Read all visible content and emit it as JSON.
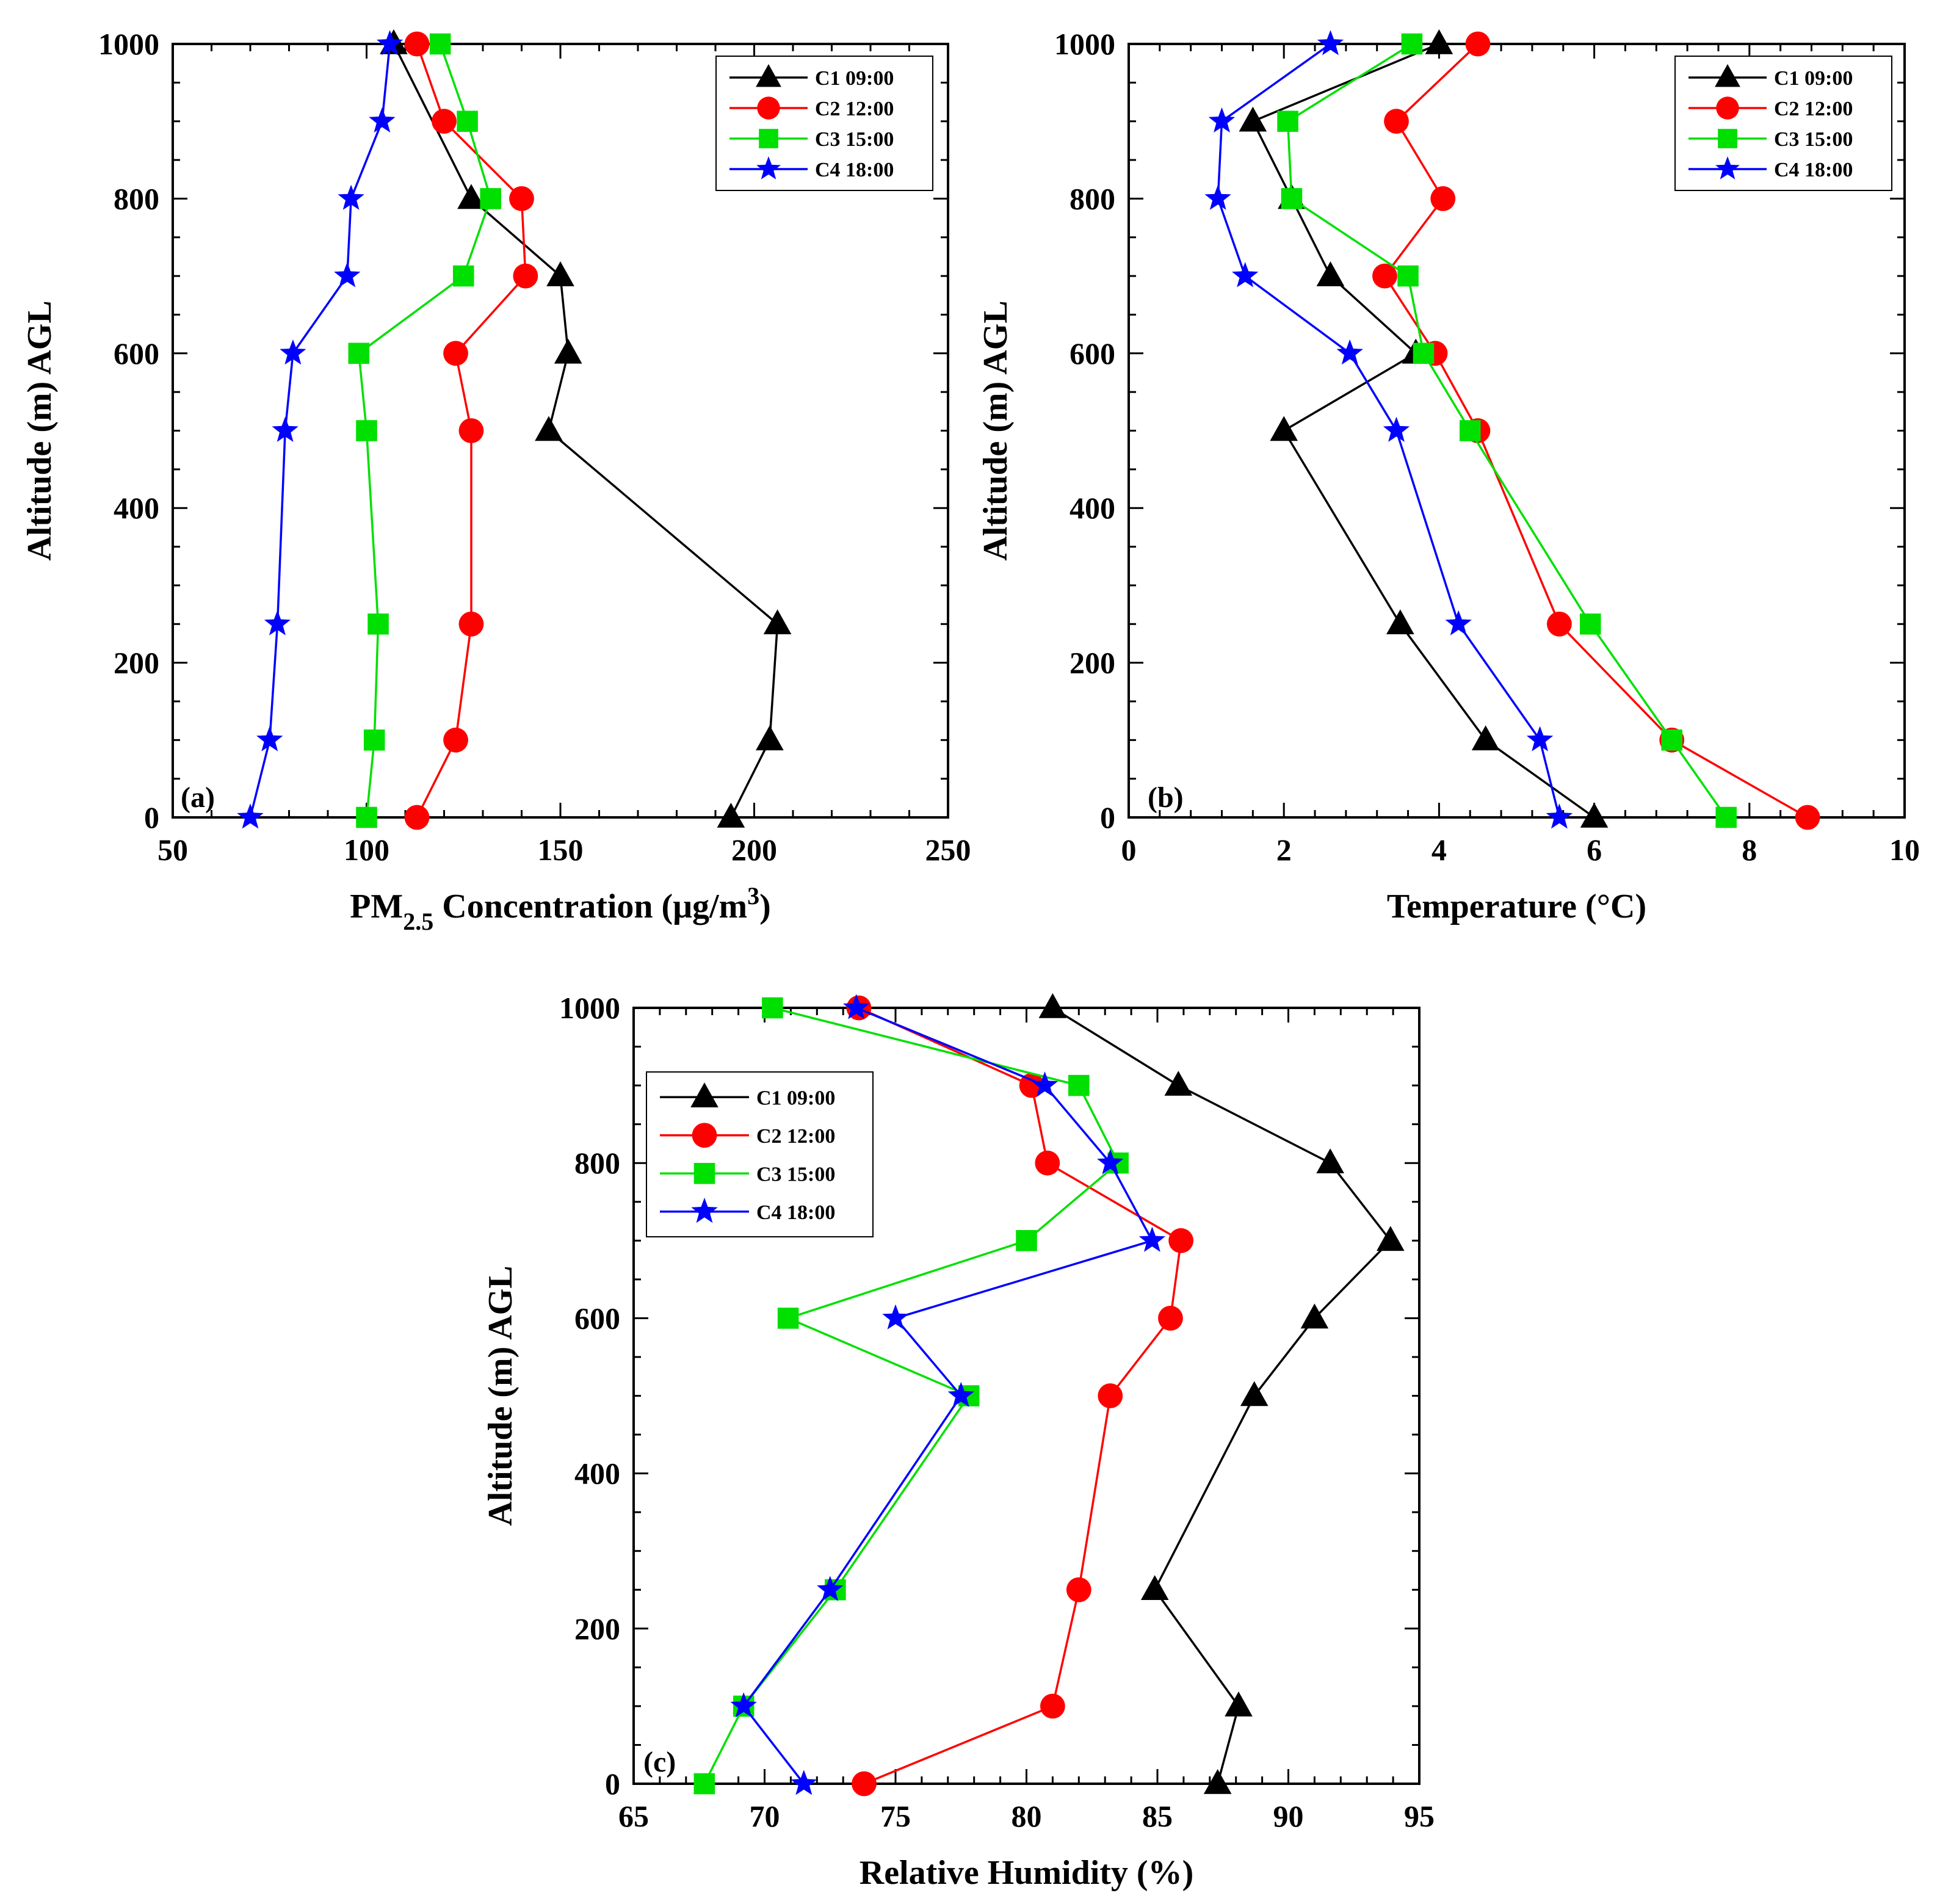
{
  "figure": {
    "series_meta": [
      {
        "name": "C1 09:00",
        "color": "#000000",
        "marker": "triangle"
      },
      {
        "name": "C2 12:00",
        "color": "#ff0000",
        "marker": "circle"
      },
      {
        "name": "C3 15:00",
        "color": "#00e000",
        "marker": "square"
      },
      {
        "name": "C4 18:00",
        "color": "#0000ff",
        "marker": "star"
      }
    ]
  },
  "chart_data": [
    {
      "type": "line",
      "panel_label": "(a)",
      "title": "",
      "xlabel_parts": [
        "PM",
        "2.5",
        " Concentration (μg/m",
        "3",
        ")"
      ],
      "xlabel": "PM2.5 Concentration (μg/m3)",
      "ylabel": "Altitude (m) AGL",
      "xlim": [
        50,
        250
      ],
      "ylim": [
        0,
        1000
      ],
      "xticks": [
        50,
        100,
        150,
        200,
        250
      ],
      "yticks": [
        0,
        200,
        400,
        600,
        800,
        1000
      ],
      "legend_position": "top-right",
      "series": [
        {
          "name": "C1 09:00",
          "points": [
            [
              194,
              0
            ],
            [
              204,
              100
            ],
            [
              206,
              250
            ],
            [
              147,
              500
            ],
            [
              152,
              600
            ],
            [
              150,
              700
            ],
            [
              127,
              800
            ],
            [
              107,
              1000
            ]
          ]
        },
        {
          "name": "C2 12:00",
          "points": [
            [
              113,
              0
            ],
            [
              123,
              100
            ],
            [
              127,
              250
            ],
            [
              127,
              500
            ],
            [
              123,
              600
            ],
            [
              141,
              700
            ],
            [
              140,
              800
            ],
            [
              120,
              900
            ],
            [
              113,
              1000
            ]
          ]
        },
        {
          "name": "C3 15:00",
          "points": [
            [
              100,
              0
            ],
            [
              102,
              100
            ],
            [
              103,
              250
            ],
            [
              100,
              500
            ],
            [
              98,
              600
            ],
            [
              125,
              700
            ],
            [
              132,
              800
            ],
            [
              126,
              900
            ],
            [
              119,
              1000
            ]
          ]
        },
        {
          "name": "C4 18:00",
          "points": [
            [
              70,
              0
            ],
            [
              75,
              100
            ],
            [
              77,
              250
            ],
            [
              79,
              500
            ],
            [
              81,
              600
            ],
            [
              95,
              700
            ],
            [
              96,
              800
            ],
            [
              104,
              900
            ],
            [
              106,
              1000
            ]
          ]
        }
      ]
    },
    {
      "type": "line",
      "panel_label": "(b)",
      "title": "",
      "xlabel": "Temperature (°C)",
      "ylabel": "Altitude (m) AGL",
      "xlim": [
        0,
        10
      ],
      "ylim": [
        0,
        1000
      ],
      "xticks": [
        0,
        2,
        4,
        6,
        8,
        10
      ],
      "yticks": [
        0,
        200,
        400,
        600,
        800,
        1000
      ],
      "legend_position": "top-right",
      "series": [
        {
          "name": "C1 09:00",
          "points": [
            [
              6.0,
              0
            ],
            [
              4.6,
              100
            ],
            [
              3.5,
              250
            ],
            [
              2.0,
              500
            ],
            [
              3.7,
              600
            ],
            [
              2.6,
              700
            ],
            [
              2.1,
              800
            ],
            [
              1.6,
              900
            ],
            [
              4.0,
              1000
            ]
          ]
        },
        {
          "name": "C2 12:00",
          "points": [
            [
              8.75,
              0
            ],
            [
              7.0,
              100
            ],
            [
              5.55,
              250
            ],
            [
              4.5,
              500
            ],
            [
              3.95,
              600
            ],
            [
              3.3,
              700
            ],
            [
              4.05,
              800
            ],
            [
              3.45,
              900
            ],
            [
              4.5,
              1000
            ]
          ]
        },
        {
          "name": "C3 15:00",
          "points": [
            [
              7.7,
              0
            ],
            [
              7.0,
              100
            ],
            [
              5.95,
              250
            ],
            [
              4.4,
              500
            ],
            [
              3.8,
              600
            ],
            [
              3.6,
              700
            ],
            [
              2.1,
              800
            ],
            [
              2.05,
              900
            ],
            [
              3.65,
              1000
            ]
          ]
        },
        {
          "name": "C4 18:00",
          "points": [
            [
              5.55,
              0
            ],
            [
              5.3,
              100
            ],
            [
              4.25,
              250
            ],
            [
              3.45,
              500
            ],
            [
              2.85,
              600
            ],
            [
              1.5,
              700
            ],
            [
              1.15,
              800
            ],
            [
              1.2,
              900
            ],
            [
              2.6,
              1000
            ]
          ]
        }
      ]
    },
    {
      "type": "line",
      "panel_label": "(c)",
      "title": "",
      "xlabel": "Relative Humidity (%)",
      "ylabel": "Altitude (m) AGL",
      "xlim": [
        65,
        95
      ],
      "ylim": [
        0,
        1000
      ],
      "xticks": [
        65,
        70,
        75,
        80,
        85,
        90,
        95
      ],
      "yticks": [
        0,
        200,
        400,
        600,
        800,
        1000
      ],
      "legend_position": "top-left",
      "series": [
        {
          "name": "C1 09:00",
          "points": [
            [
              87.3,
              0
            ],
            [
              88.1,
              100
            ],
            [
              84.9,
              250
            ],
            [
              88.7,
              500
            ],
            [
              91.0,
              600
            ],
            [
              93.9,
              700
            ],
            [
              91.6,
              800
            ],
            [
              85.8,
              900
            ],
            [
              81.0,
              1000
            ]
          ]
        },
        {
          "name": "C2 12:00",
          "points": [
            [
              73.8,
              0
            ],
            [
              81.0,
              100
            ],
            [
              82.0,
              250
            ],
            [
              83.2,
              500
            ],
            [
              85.5,
              600
            ],
            [
              85.9,
              700
            ],
            [
              80.8,
              800
            ],
            [
              80.2,
              900
            ],
            [
              73.6,
              1000
            ]
          ]
        },
        {
          "name": "C3 15:00",
          "points": [
            [
              67.7,
              0
            ],
            [
              69.2,
              100
            ],
            [
              72.7,
              250
            ],
            [
              77.8,
              500
            ],
            [
              70.9,
              600
            ],
            [
              80.0,
              700
            ],
            [
              83.5,
              800
            ],
            [
              82.0,
              900
            ],
            [
              70.3,
              1000
            ]
          ]
        },
        {
          "name": "C4 18:00",
          "points": [
            [
              71.5,
              0
            ],
            [
              69.2,
              100
            ],
            [
              72.5,
              250
            ],
            [
              77.5,
              500
            ],
            [
              75.0,
              600
            ],
            [
              84.8,
              700
            ],
            [
              83.2,
              800
            ],
            [
              80.7,
              900
            ],
            [
              73.5,
              1000
            ]
          ]
        }
      ]
    }
  ]
}
